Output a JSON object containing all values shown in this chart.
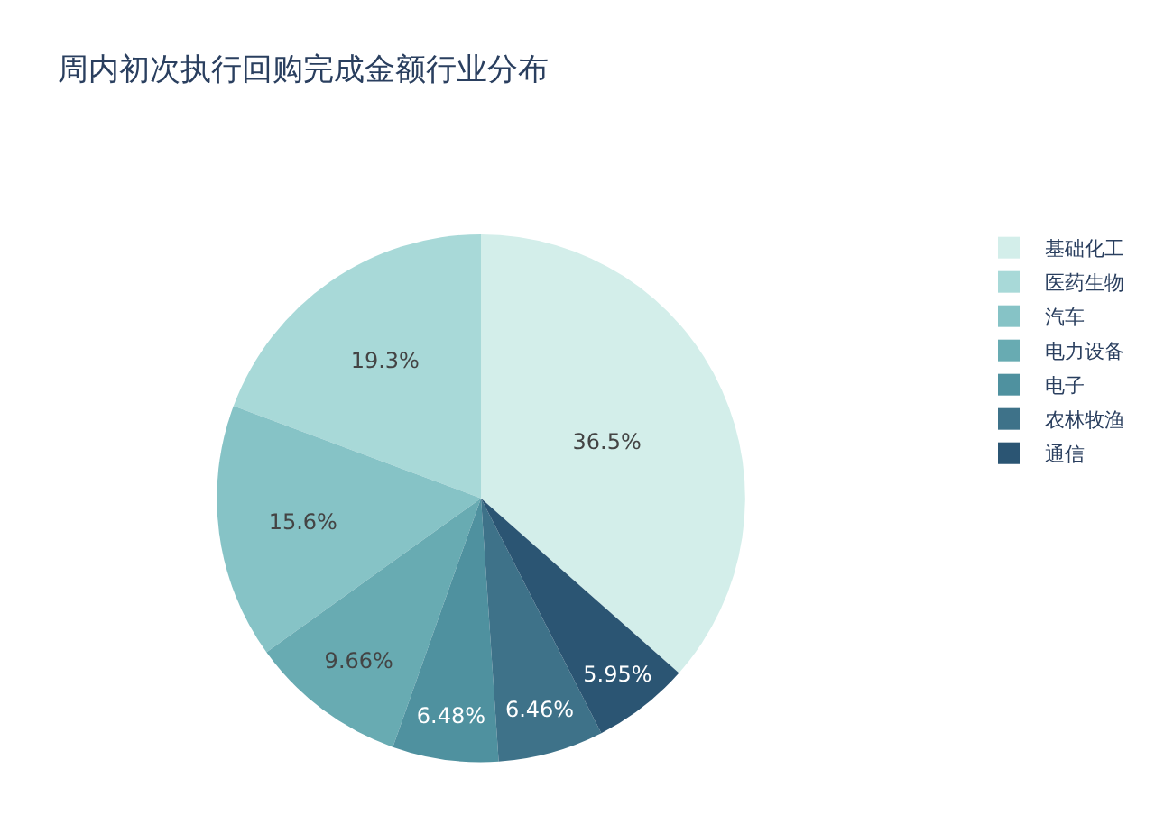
{
  "chart_data": {
    "type": "pie",
    "title": "周内初次执行回购完成金额行业分布",
    "categories": [
      "基础化工",
      "医药生物",
      "汽车",
      "电力设备",
      "电子",
      "农林牧渔",
      "通信"
    ],
    "values": [
      36.5,
      19.3,
      15.6,
      9.66,
      6.48,
      6.46,
      5.95
    ],
    "value_labels": [
      "36.5%",
      "19.3%",
      "15.6%",
      "9.66%",
      "6.48%",
      "6.46%",
      "5.95%"
    ],
    "colors": [
      "#d3eeea",
      "#a8d9d8",
      "#86c3c6",
      "#68abb2",
      "#4f919f",
      "#3e7289",
      "#2b5573"
    ],
    "legend": "top right"
  }
}
